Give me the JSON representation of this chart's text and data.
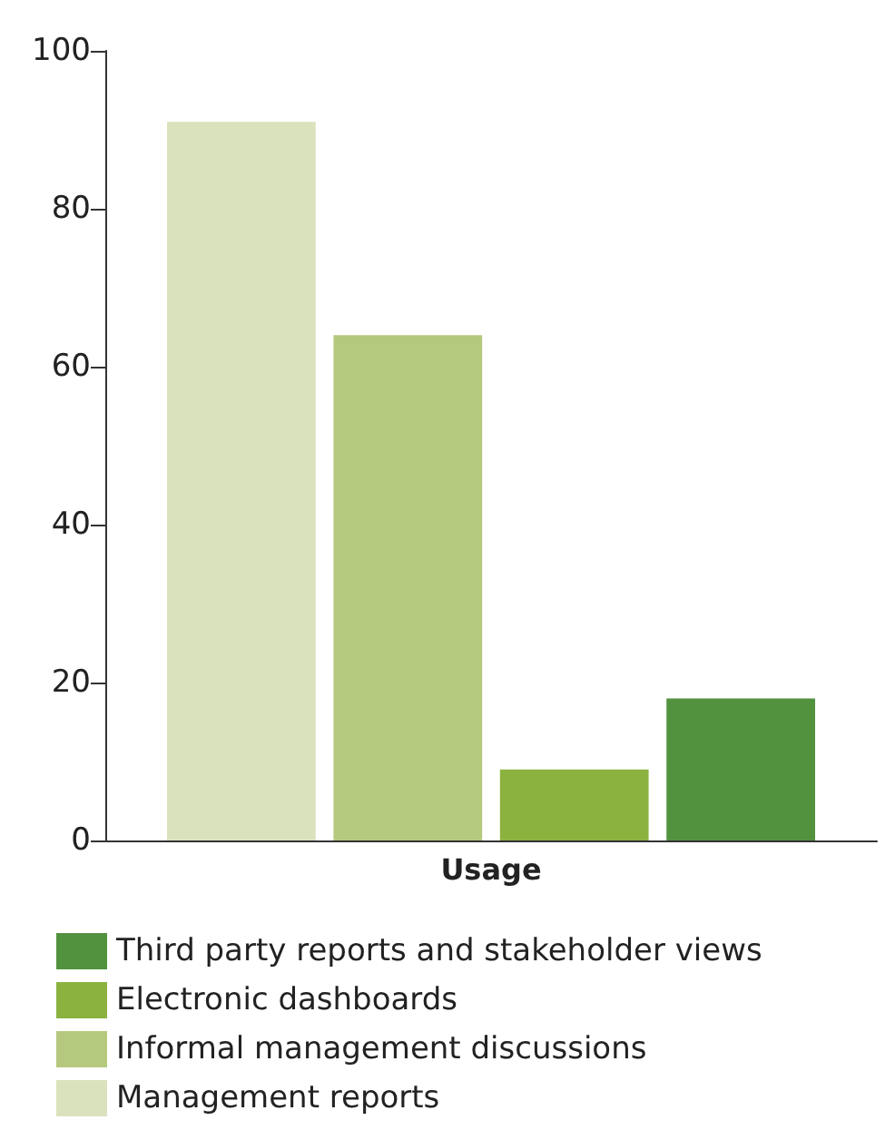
{
  "chart_data": {
    "type": "bar",
    "categories": [
      "Usage"
    ],
    "series": [
      {
        "name": "Management reports",
        "color": "#dae2bd",
        "values": [
          91
        ]
      },
      {
        "name": "Informal management discussions",
        "color": "#b5c97e",
        "values": [
          64
        ]
      },
      {
        "name": "Electronic dashboards",
        "color": "#8bb23f",
        "values": [
          9
        ]
      },
      {
        "name": "Third party reports and stakeholder views",
        "color": "#52923f",
        "values": [
          18
        ]
      }
    ],
    "ylim": [
      0,
      100
    ],
    "yticks": [
      0,
      20,
      40,
      60,
      80,
      100
    ],
    "grid": false,
    "legend": "bottom"
  }
}
